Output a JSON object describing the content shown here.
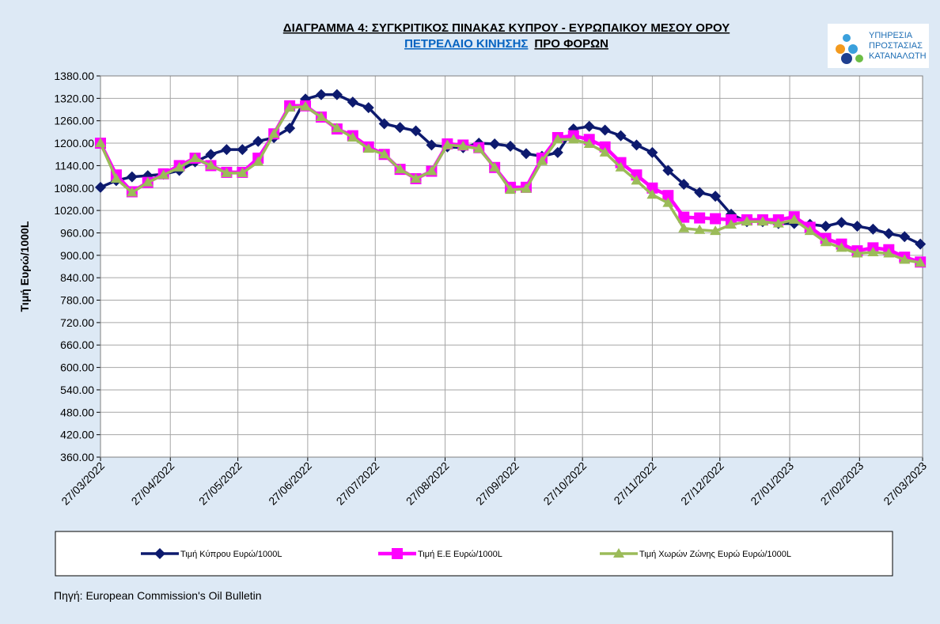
{
  "chart_data": {
    "type": "line",
    "title": "ΔΙΑΓΡΑΜΜΑ 4: ΣΥΓΚΡΙΤΙΚΟΣ ΠΙΝΑΚΑΣ ΚΥΠΡΟΥ - ΕΥΡΩΠΑΙΚΟΥ ΜΕΣΟΥ ΟΡΟΥ",
    "subtitle_link": "ΠΕΤΡΕΛΑΙΟ ΚΙΝΗΣΗΣ",
    "subtitle": "ΠΡΟ ΦΟΡΩΝ",
    "logo_text": [
      "ΥΠΗΡΕΣΙΑ",
      "ΠΡΟΣΤΑΣΙΑΣ",
      "ΚΑΤΑΝΑΛΩΤΗ"
    ],
    "y_label": "Τιμή Ευρώ/1000L",
    "source": "Πηγή: European Commission's Oil Bulletin",
    "x": [
      "27/03/2022",
      "03/04/2022",
      "10/04/2022",
      "17/04/2022",
      "24/04/2022",
      "01/05/2022",
      "08/05/2022",
      "15/05/2022",
      "22/05/2022",
      "29/05/2022",
      "05/06/2022",
      "12/06/2022",
      "19/06/2022",
      "26/06/2022",
      "03/07/2022",
      "10/07/2022",
      "17/07/2022",
      "24/07/2022",
      "31/07/2022",
      "07/08/2022",
      "14/08/2022",
      "21/08/2022",
      "28/08/2022",
      "04/09/2022",
      "11/09/2022",
      "18/09/2022",
      "25/09/2022",
      "02/10/2022",
      "09/10/2022",
      "16/10/2022",
      "23/10/2022",
      "30/10/2022",
      "06/11/2022",
      "13/11/2022",
      "20/11/2022",
      "27/11/2022",
      "04/12/2022",
      "11/12/2022",
      "18/12/2022",
      "25/12/2022",
      "01/01/2023",
      "08/01/2023",
      "15/01/2023",
      "22/01/2023",
      "29/01/2023",
      "05/02/2023",
      "12/02/2023",
      "19/02/2023",
      "26/02/2023",
      "05/03/2023",
      "12/03/2023",
      "19/03/2023",
      "26/03/2023"
    ],
    "series": [
      {
        "name": "Τιμή Κύπρου Ευρώ/1000L",
        "color": "#0d1a6e",
        "marker": "diamond",
        "values": [
          1082,
          1100,
          1110,
          1113,
          1117,
          1127,
          1150,
          1170,
          1183,
          1183,
          1205,
          1215,
          1240,
          1318,
          1330,
          1330,
          1310,
          1295,
          1252,
          1242,
          1233,
          1195,
          1190,
          1188,
          1200,
          1198,
          1192,
          1172,
          1165,
          1175,
          1238,
          1245,
          1235,
          1220,
          1195,
          1175,
          1127,
          1090,
          1068,
          1058,
          1010,
          990,
          990,
          985,
          985,
          983,
          978,
          988,
          978,
          970,
          958,
          950,
          930
        ]
      },
      {
        "name": "Τιμή Ε.Ε Ευρώ/1000L",
        "color": "#ff00ff",
        "marker": "square",
        "values": [
          1200,
          1115,
          1070,
          1095,
          1118,
          1140,
          1160,
          1140,
          1122,
          1122,
          1160,
          1225,
          1300,
          1300,
          1270,
          1238,
          1220,
          1190,
          1170,
          1130,
          1105,
          1125,
          1198,
          1195,
          1188,
          1135,
          1082,
          1082,
          1160,
          1215,
          1220,
          1210,
          1190,
          1148,
          1115,
          1080,
          1060,
          1002,
          1000,
          998,
          995,
          995,
          995,
          995,
          1003,
          975,
          945,
          930,
          912,
          920,
          915,
          895,
          882
        ]
      },
      {
        "name": "Τιμή Χωρών Ζώνης Ευρώ Ευρώ/1000L",
        "color": "#9bbb59",
        "marker": "triangle",
        "values": [
          1200,
          1105,
          1068,
          1095,
          1115,
          1135,
          1160,
          1140,
          1120,
          1120,
          1150,
          1225,
          1295,
          1298,
          1270,
          1240,
          1215,
          1185,
          1170,
          1130,
          1105,
          1125,
          1195,
          1192,
          1185,
          1135,
          1075,
          1078,
          1152,
          1210,
          1210,
          1198,
          1175,
          1135,
          1100,
          1062,
          1040,
          972,
          968,
          965,
          982,
          990,
          990,
          985,
          995,
          965,
          935,
          920,
          905,
          908,
          905,
          888,
          880
        ]
      }
    ],
    "xlim": [
      "27/03/2022",
      "27/03/2023"
    ],
    "xticks": [
      "27/03/2022",
      "27/04/2022",
      "27/05/2022",
      "27/06/2022",
      "27/07/2022",
      "27/08/2022",
      "27/09/2022",
      "27/10/2022",
      "27/11/2022",
      "27/12/2022",
      "27/01/2023",
      "27/02/2023",
      "27/03/2023"
    ],
    "ylim": [
      360,
      1380
    ],
    "yticks": [
      {
        "value": 360,
        "label": "360.00"
      },
      {
        "value": 420,
        "label": "420.00"
      },
      {
        "value": 480,
        "label": "480.00"
      },
      {
        "value": 540,
        "label": "540.00"
      },
      {
        "value": 600,
        "label": "600.00"
      },
      {
        "value": 660,
        "label": "660.00"
      },
      {
        "value": 720,
        "label": "720.00"
      },
      {
        "value": 780,
        "label": "780.00"
      },
      {
        "value": 840,
        "label": "840.00"
      },
      {
        "value": 900,
        "label": "900.00"
      },
      {
        "value": 960,
        "label": "960.00"
      },
      {
        "value": 1020,
        "label": "1020.00"
      },
      {
        "value": 1080,
        "label": "1080.00"
      },
      {
        "value": 1140,
        "label": "1140.00"
      },
      {
        "value": 1200,
        "label": "1200.00"
      },
      {
        "value": 1260,
        "label": "1260.00"
      },
      {
        "value": 1320,
        "label": "1320.00"
      },
      {
        "value": 1380,
        "label": "1380.00"
      }
    ],
    "grid": true
  }
}
